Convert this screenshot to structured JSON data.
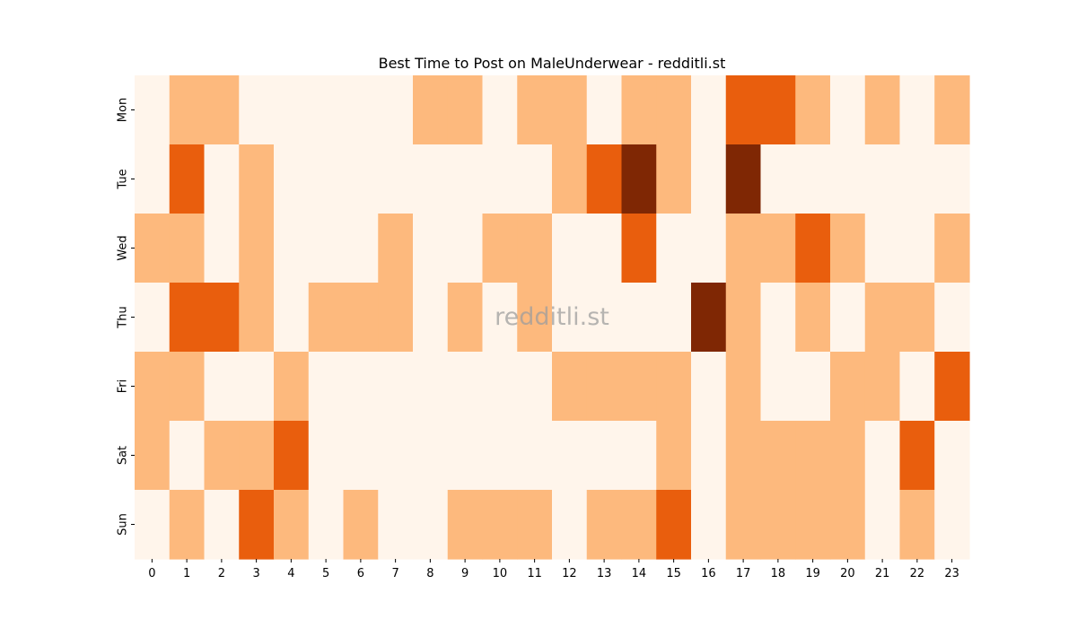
{
  "chart_data": {
    "type": "heatmap",
    "title": "Best Time to Post on MaleUnderwear - redditli.st",
    "watermark": "redditli.st",
    "x_categories": [
      "0",
      "1",
      "2",
      "3",
      "4",
      "5",
      "6",
      "7",
      "8",
      "9",
      "10",
      "11",
      "12",
      "13",
      "14",
      "15",
      "16",
      "17",
      "18",
      "19",
      "20",
      "21",
      "22",
      "23"
    ],
    "y_categories": [
      "Mon",
      "Tue",
      "Wed",
      "Thu",
      "Fri",
      "Sat",
      "Sun"
    ],
    "values": [
      [
        0,
        1,
        1,
        0,
        0,
        0,
        0,
        0,
        1,
        1,
        0,
        1,
        1,
        0,
        1,
        1,
        0,
        2,
        2,
        1,
        0,
        1,
        0,
        1
      ],
      [
        0,
        2,
        0,
        1,
        0,
        0,
        0,
        0,
        0,
        0,
        0,
        0,
        1,
        2,
        3,
        1,
        0,
        3,
        0,
        0,
        0,
        0,
        0,
        0
      ],
      [
        1,
        1,
        0,
        1,
        0,
        0,
        0,
        1,
        0,
        0,
        1,
        1,
        0,
        0,
        2,
        0,
        0,
        1,
        1,
        2,
        1,
        0,
        0,
        1
      ],
      [
        0,
        2,
        2,
        1,
        0,
        1,
        1,
        1,
        0,
        1,
        0,
        1,
        0,
        0,
        0,
        0,
        3,
        1,
        0,
        1,
        0,
        1,
        1,
        0
      ],
      [
        1,
        1,
        0,
        0,
        1,
        0,
        0,
        0,
        0,
        0,
        0,
        0,
        1,
        1,
        1,
        1,
        0,
        1,
        0,
        0,
        1,
        1,
        0,
        2
      ],
      [
        1,
        0,
        1,
        1,
        2,
        0,
        0,
        0,
        0,
        0,
        0,
        0,
        0,
        0,
        0,
        1,
        0,
        1,
        1,
        1,
        1,
        0,
        2,
        0
      ],
      [
        0,
        1,
        0,
        2,
        1,
        0,
        1,
        0,
        0,
        1,
        1,
        1,
        0,
        1,
        1,
        2,
        0,
        1,
        1,
        1,
        1,
        0,
        1,
        0
      ]
    ],
    "value_range": [
      0,
      3
    ],
    "colors": {
      "0": "#fff5eb",
      "1": "#fdb97d",
      "2": "#e95e0d",
      "3": "#7f2704"
    }
  }
}
